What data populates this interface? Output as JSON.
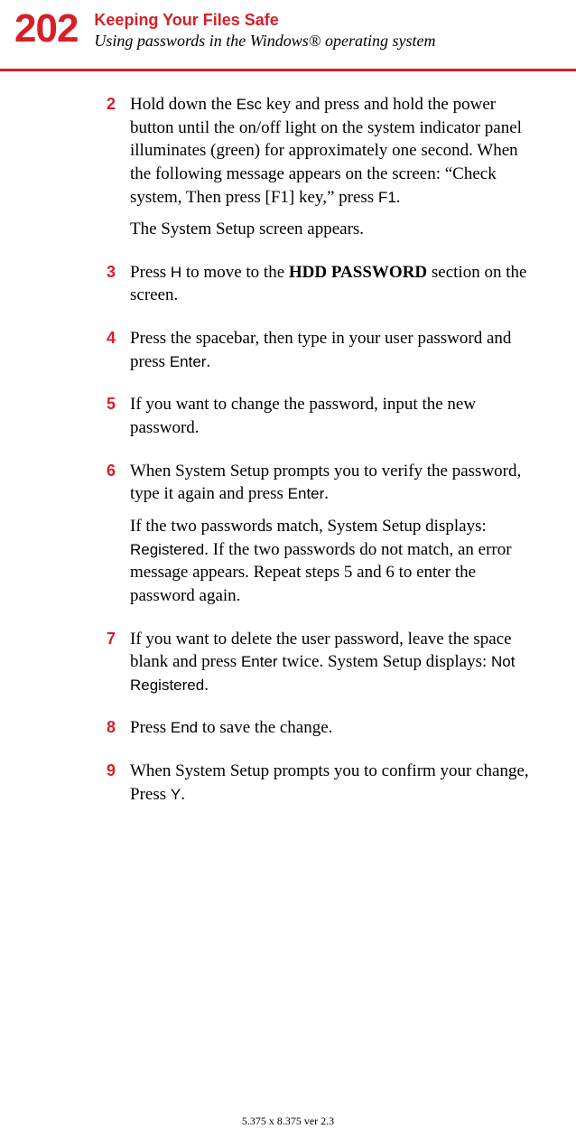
{
  "colors": {
    "accent": "#d81e28",
    "text": "#000000",
    "background": "#ffffff"
  },
  "typography": {
    "body_family": "Times New Roman",
    "accent_family": "Arial",
    "kbd_family": "Arial",
    "pagenum_size_pt": 44,
    "chapter_title_size_pt": 18,
    "section_title_size_pt": 18,
    "body_size_pt": 19,
    "footer_size_pt": 12
  },
  "header": {
    "page_number": "202",
    "chapter_title": "Keeping Your Files Safe",
    "section_title": "Using passwords in the Windows® operating system"
  },
  "steps": [
    {
      "num": "2",
      "paras": [
        {
          "runs": [
            {
              "t": "Hold down the "
            },
            {
              "t": "Esc",
              "cls": "kbd"
            },
            {
              "t": " key and press and hold the power button until the on/off light on the system indicator panel illuminates (green) for approximately one second. When the following message appears on the screen: “Check system, Then press [F1] key,” press "
            },
            {
              "t": "F1",
              "cls": "kbd"
            },
            {
              "t": "."
            }
          ]
        },
        {
          "runs": [
            {
              "t": "The System Setup screen appears."
            }
          ]
        }
      ]
    },
    {
      "num": "3",
      "paras": [
        {
          "runs": [
            {
              "t": "Press "
            },
            {
              "t": "H",
              "cls": "kbd"
            },
            {
              "t": " to move to the "
            },
            {
              "t": "HDD PASSWORD",
              "cls": "bold"
            },
            {
              "t": " section on the screen."
            }
          ]
        }
      ]
    },
    {
      "num": "4",
      "paras": [
        {
          "runs": [
            {
              "t": "Press the spacebar, then type in your user password and press "
            },
            {
              "t": "Enter",
              "cls": "kbd"
            },
            {
              "t": "."
            }
          ]
        }
      ]
    },
    {
      "num": "5",
      "paras": [
        {
          "runs": [
            {
              "t": "If you want to change the password, input the new password."
            }
          ]
        }
      ]
    },
    {
      "num": "6",
      "paras": [
        {
          "runs": [
            {
              "t": "When System Setup prompts you to verify the password, type it again and press "
            },
            {
              "t": "Enter",
              "cls": "kbd"
            },
            {
              "t": "."
            }
          ]
        },
        {
          "runs": [
            {
              "t": "If the two passwords match, System Setup displays: "
            },
            {
              "t": "Registered",
              "cls": "kbd"
            },
            {
              "t": ". If the two passwords do not match, an error message appears. Repeat steps 5 and 6 to enter the password again."
            }
          ]
        }
      ]
    },
    {
      "num": "7",
      "paras": [
        {
          "runs": [
            {
              "t": "If you want to delete the user password, leave the space blank and press "
            },
            {
              "t": "Enter",
              "cls": "kbd"
            },
            {
              "t": " twice. System Setup displays: "
            },
            {
              "t": "Not Registered",
              "cls": "kbd"
            },
            {
              "t": "."
            }
          ]
        }
      ]
    },
    {
      "num": "8",
      "paras": [
        {
          "runs": [
            {
              "t": "Press "
            },
            {
              "t": "End",
              "cls": "kbd"
            },
            {
              "t": " to save the change."
            }
          ]
        }
      ]
    },
    {
      "num": "9",
      "paras": [
        {
          "runs": [
            {
              "t": "When System Setup prompts you to confirm your change, Press "
            },
            {
              "t": "Y",
              "cls": "kbd"
            },
            {
              "t": "."
            }
          ]
        }
      ]
    }
  ],
  "footer": "5.375 x 8.375 ver 2.3"
}
